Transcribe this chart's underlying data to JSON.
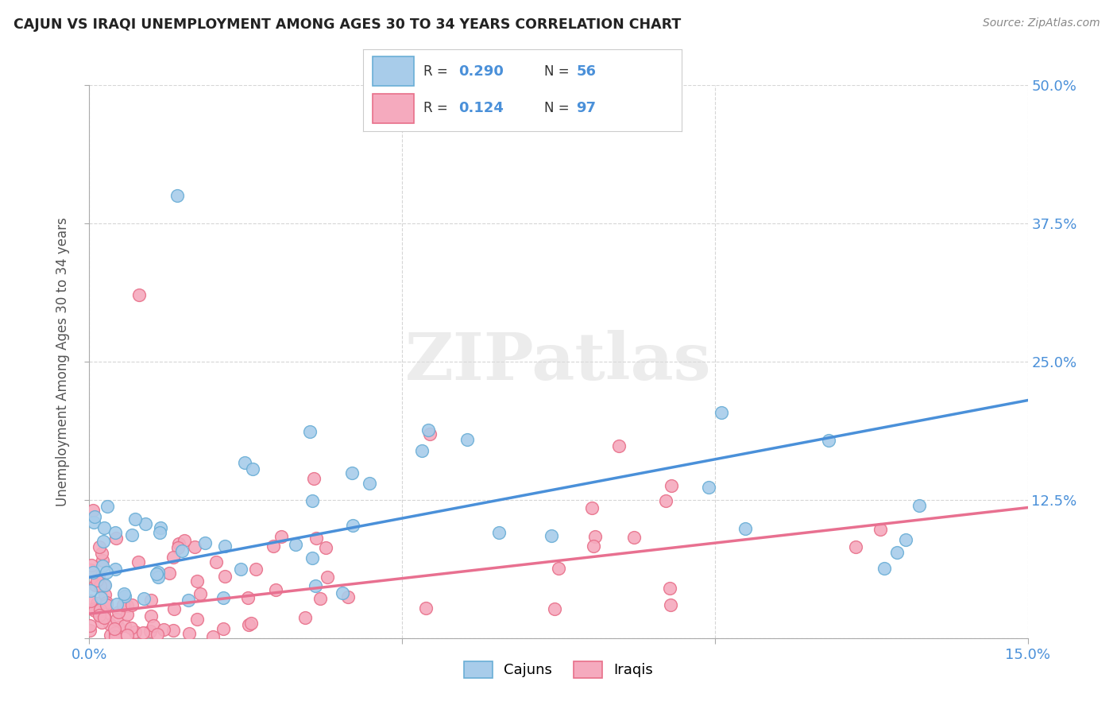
{
  "title": "CAJUN VS IRAQI UNEMPLOYMENT AMONG AGES 30 TO 34 YEARS CORRELATION CHART",
  "source": "Source: ZipAtlas.com",
  "ylabel": "Unemployment Among Ages 30 to 34 years",
  "xlim": [
    0.0,
    0.15
  ],
  "ylim": [
    0.0,
    0.5
  ],
  "cajun_R": "0.290",
  "cajun_N": "56",
  "iraqi_R": "0.124",
  "iraqi_N": "97",
  "cajun_color": "#A8CCEA",
  "iraqi_color": "#F5AABE",
  "cajun_edge_color": "#6AAED6",
  "iraqi_edge_color": "#E8708A",
  "cajun_line_color": "#4A90D9",
  "iraqi_line_color": "#E87090",
  "grid_color": "#CCCCCC",
  "watermark": "ZIPatlas",
  "cajun_line_y0": 0.055,
  "cajun_line_y1": 0.215,
  "iraqi_line_y0": 0.022,
  "iraqi_line_y1": 0.118
}
